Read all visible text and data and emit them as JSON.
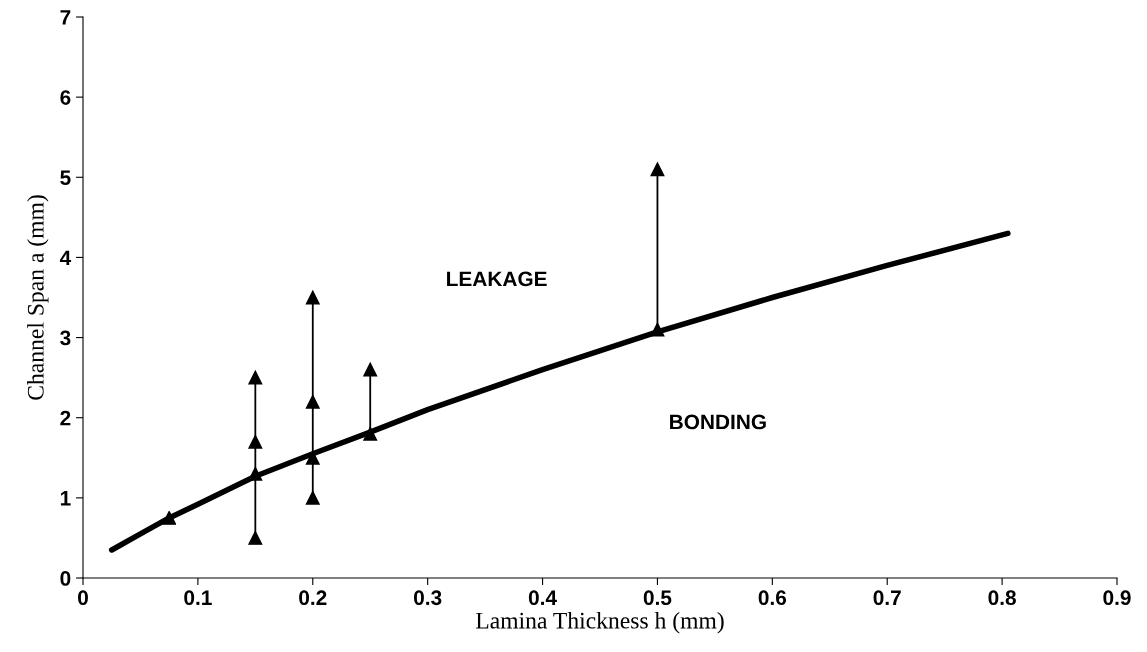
{
  "chart_data": {
    "type": "line",
    "xlabel": "Lamina Thickness h (mm)",
    "ylabel": "Channel Span a (mm)",
    "xlim": [
      0,
      0.9
    ],
    "ylim": [
      0,
      7
    ],
    "xticks": [
      0,
      0.1,
      0.2,
      0.3,
      0.4,
      0.5,
      0.6,
      0.7,
      0.8,
      0.9
    ],
    "yticks": [
      0,
      1,
      2,
      3,
      4,
      5,
      6,
      7
    ],
    "grid": false,
    "series": [
      {
        "color": "#000000",
        "marker": "none",
        "x": [
          0.025,
          0.05,
          0.075,
          0.1,
          0.15,
          0.2,
          0.25,
          0.3,
          0.4,
          0.5,
          0.6,
          0.7,
          0.805
        ],
        "values": [
          0.35,
          0.55,
          0.75,
          0.92,
          1.27,
          1.55,
          1.82,
          2.1,
          2.6,
          3.07,
          3.5,
          3.9,
          4.3
        ]
      },
      {
        "type": "scatter",
        "color": "#000000",
        "marker": "triangle",
        "x": [
          0.075
        ],
        "values": [
          0.75
        ]
      },
      {
        "type": "line",
        "color": "#000000",
        "marker": "triangle",
        "x": [
          0.15,
          0.15,
          0.15,
          0.15
        ],
        "values": [
          0.5,
          1.3,
          1.7,
          2.5
        ]
      },
      {
        "type": "line",
        "color": "#000000",
        "marker": "triangle",
        "x": [
          0.2,
          0.2,
          0.2,
          0.2
        ],
        "values": [
          1.0,
          1.5,
          2.2,
          3.5
        ]
      },
      {
        "type": "line",
        "color": "#000000",
        "marker": "triangle",
        "x": [
          0.25,
          0.25
        ],
        "values": [
          1.8,
          2.6
        ]
      },
      {
        "type": "line",
        "color": "#000000",
        "marker": "triangle",
        "x": [
          0.5,
          0.5
        ],
        "values": [
          3.1,
          5.1
        ]
      }
    ],
    "annotations": [
      "LEAKAGE",
      "BONDING"
    ]
  }
}
